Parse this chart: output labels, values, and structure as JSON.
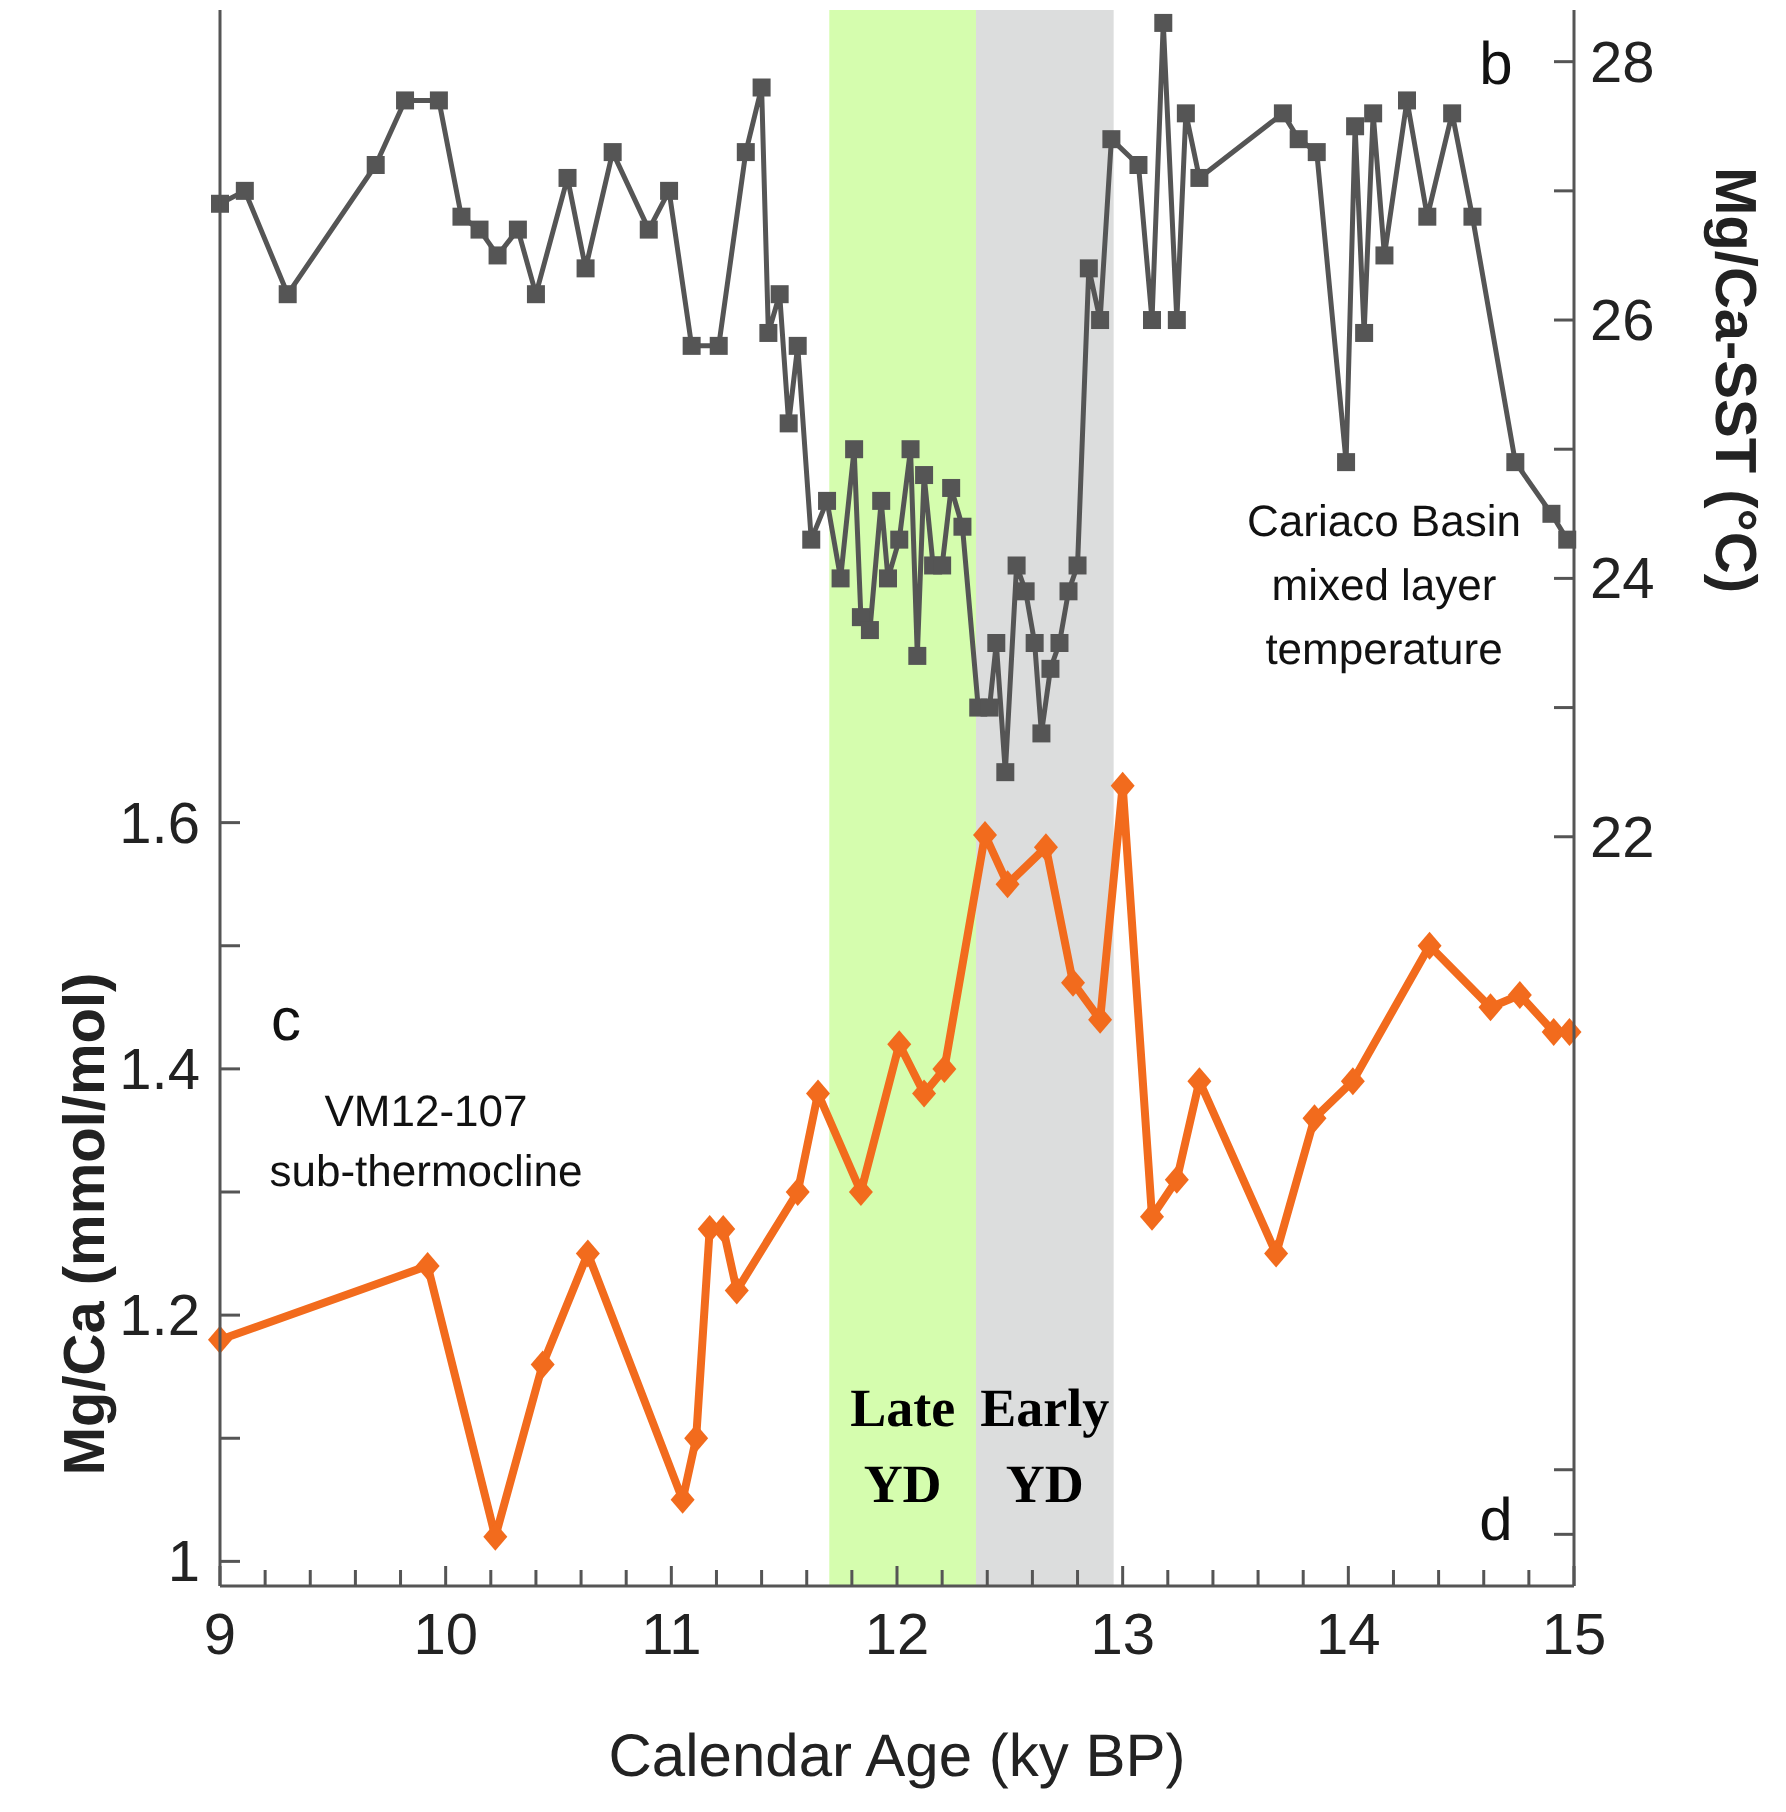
{
  "chart_data": {
    "type": "line",
    "xlabel": "Calendar Age (ky BP)",
    "ylabel": "Mg/Ca (mmol/mol)",
    "y2label": "Mg/Ca-SST (°C)",
    "xlim": [
      9,
      15
    ],
    "xticks": [
      9,
      {
        "value": 9.2,
        "label": null
      },
      {
        "value": 9.4,
        "label": null
      },
      {
        "value": 9.6,
        "label": null
      },
      {
        "value": 9.8,
        "label": null
      },
      10,
      {
        "value": 10.2,
        "label": null
      },
      {
        "value": 10.4,
        "label": null
      },
      {
        "value": 10.6,
        "label": null
      },
      {
        "value": 10.8,
        "label": null
      },
      11,
      {
        "value": 11.2,
        "label": null
      },
      {
        "value": 11.4,
        "label": null
      },
      {
        "value": 11.6,
        "label": null
      },
      {
        "value": 11.8,
        "label": null
      },
      12,
      {
        "value": 12.2,
        "label": null
      },
      {
        "value": 12.4,
        "label": null
      },
      {
        "value": 12.6,
        "label": null
      },
      {
        "value": 12.8,
        "label": null
      },
      13,
      {
        "value": 13.2,
        "label": null
      },
      {
        "value": 13.4,
        "label": null
      },
      {
        "value": 13.6,
        "label": null
      },
      {
        "value": 13.8,
        "label": null
      },
      14,
      {
        "value": 14.2,
        "label": null
      },
      {
        "value": 14.4,
        "label": null
      },
      {
        "value": 14.6,
        "label": null
      },
      {
        "value": 14.8,
        "label": null
      },
      15
    ],
    "ylim": [
      0.98,
      2.26
    ],
    "yticks": [
      1,
      {
        "value": 1.1,
        "label": null
      },
      1.2,
      {
        "value": 1.3,
        "label": null
      },
      1.4,
      {
        "value": 1.5,
        "label": null
      },
      1.6
    ],
    "y2lim": [
      16.2,
      28.4
    ],
    "y2ticks": [
      {
        "value": 16.6,
        "label": null
      },
      {
        "value": 17.1,
        "label": null
      },
      22,
      {
        "value": 23,
        "label": null
      },
      24,
      {
        "value": 25,
        "label": null
      },
      26,
      {
        "value": 27,
        "label": null
      },
      28
    ],
    "grid": false,
    "line_style": "solid",
    "bands": [
      {
        "axis": "x",
        "from": 11.7,
        "to": 12.35,
        "label": "Late\nYD",
        "color": "#d5fdae"
      },
      {
        "axis": "x",
        "from": 12.35,
        "to": 12.96,
        "label": "Early\nYD",
        "color": "#dcdddd"
      }
    ],
    "annotations": [
      "b",
      "Cariaco Basin\nmixed layer\ntemperature",
      "c",
      "VM12-107\nsub-thermocline",
      "d"
    ],
    "series": [
      {
        "color": "#555555",
        "axis": "y2",
        "marker": "square",
        "x": [
          9.0,
          9.11,
          9.3,
          9.69,
          9.82,
          9.97,
          10.07,
          10.15,
          10.23,
          10.32,
          10.4,
          10.54,
          10.62,
          10.74,
          10.9,
          10.99,
          11.09,
          11.21,
          11.33,
          11.4,
          11.43,
          11.48,
          11.52,
          11.56,
          11.62,
          11.69,
          11.75,
          11.81,
          11.84,
          11.88,
          11.93,
          11.96,
          12.01,
          12.06,
          12.09,
          12.12,
          12.16,
          12.2,
          12.24,
          12.29,
          12.36,
          12.41,
          12.44,
          12.48,
          12.53,
          12.57,
          12.61,
          12.64,
          12.68,
          12.72,
          12.76,
          12.8,
          12.85,
          12.9,
          12.95,
          13.07,
          13.13,
          13.18,
          13.24,
          13.28,
          13.34,
          13.71,
          13.78,
          13.86,
          13.99,
          14.03,
          14.07,
          14.11,
          14.16,
          14.26,
          14.35,
          14.46,
          14.55,
          14.74,
          14.9,
          14.97
        ],
        "values": [
          26.9,
          27.0,
          26.2,
          27.2,
          27.7,
          27.7,
          26.8,
          26.7,
          26.5,
          26.7,
          26.2,
          27.1,
          26.4,
          27.3,
          26.7,
          27.0,
          25.8,
          25.8,
          27.3,
          27.8,
          25.9,
          26.2,
          25.2,
          25.8,
          24.3,
          24.6,
          24.0,
          25.0,
          23.7,
          23.6,
          24.6,
          24.0,
          24.3,
          25.0,
          23.4,
          24.8,
          24.1,
          24.1,
          24.7,
          24.4,
          23.0,
          23.0,
          23.5,
          22.5,
          24.1,
          23.9,
          23.5,
          22.8,
          23.3,
          23.5,
          23.9,
          24.1,
          26.4,
          26.0,
          27.4,
          27.2,
          26.0,
          28.3,
          26.0,
          27.6,
          27.1,
          27.6,
          27.4,
          27.3,
          24.9,
          27.5,
          25.9,
          27.6,
          26.5,
          27.7,
          26.8,
          27.6,
          26.8,
          24.9,
          24.5,
          24.3
        ]
      },
      {
        "color": "#f26b1d",
        "marker": "diamond",
        "x": [
          9.0,
          9.92,
          10.22,
          10.43,
          10.63,
          11.05,
          11.11,
          11.17,
          11.23,
          11.29,
          11.56,
          11.65,
          11.84,
          12.01,
          12.12,
          12.21,
          12.39,
          12.49,
          12.66,
          12.78,
          12.9,
          13.0,
          13.13,
          13.24,
          13.34,
          13.68,
          13.85,
          14.02,
          14.36,
          14.63,
          14.76,
          14.91,
          14.98
        ],
        "values": [
          1.18,
          1.24,
          1.02,
          1.16,
          1.25,
          1.05,
          1.1,
          1.27,
          1.27,
          1.22,
          1.3,
          1.38,
          1.3,
          1.42,
          1.38,
          1.4,
          1.59,
          1.55,
          1.58,
          1.47,
          1.44,
          1.63,
          1.28,
          1.31,
          1.39,
          1.25,
          1.36,
          1.39,
          1.5,
          1.45,
          1.46,
          1.43,
          1.43
        ]
      }
    ]
  }
}
